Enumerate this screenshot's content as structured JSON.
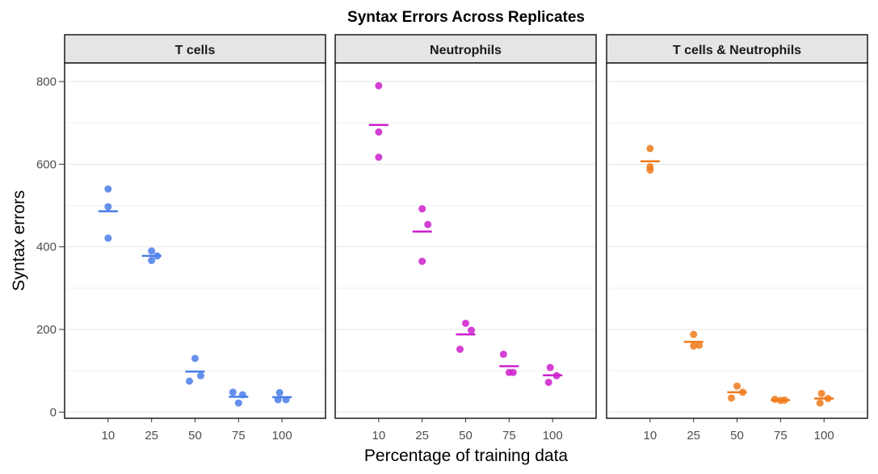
{
  "chart_data": {
    "type": "scatter",
    "title": "Syntax Errors Across Replicates",
    "xlabel": "Percentage of training data",
    "ylabel": "Syntax errors",
    "categories": [
      "10",
      "25",
      "50",
      "75",
      "100"
    ],
    "yticks": [
      0,
      200,
      400,
      600,
      800
    ],
    "ylim": [
      -15,
      845
    ],
    "grid": true,
    "legend": "none",
    "panels": [
      {
        "name": "T cells",
        "color": "#4a7de8",
        "points": {
          "10": [
            540,
            497,
            421
          ],
          "25": [
            390,
            378,
            367
          ],
          "50": [
            130,
            88,
            75
          ],
          "75": [
            48,
            42,
            22
          ],
          "100": [
            47,
            30,
            30
          ]
        },
        "means": [
          486,
          378,
          98,
          37,
          36
        ]
      },
      {
        "name": "Neutrophils",
        "color": "#cc1fcc",
        "points": {
          "10": [
            790,
            678,
            617
          ],
          "25": [
            492,
            454,
            365
          ],
          "50": [
            215,
            198,
            152
          ],
          "75": [
            140,
            96,
            96
          ],
          "100": [
            108,
            88,
            72
          ]
        },
        "means": [
          695,
          437,
          188,
          111,
          89
        ]
      },
      {
        "name": "T cells & Neutrophils",
        "color": "#ef7a1a",
        "points": {
          "10": [
            638,
            594,
            586
          ],
          "25": [
            188,
            162,
            160
          ],
          "50": [
            63,
            48,
            34
          ],
          "75": [
            31,
            29,
            28
          ],
          "100": [
            45,
            33,
            22
          ]
        },
        "means": [
          607,
          170,
          48,
          29,
          33
        ]
      }
    ]
  }
}
